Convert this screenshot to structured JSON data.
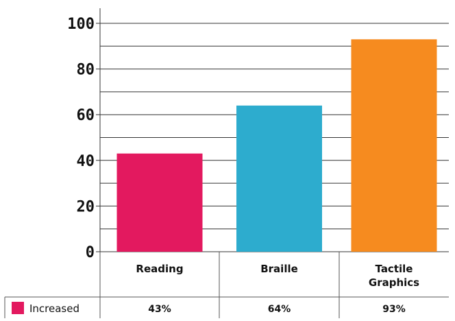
{
  "chart_data": {
    "type": "bar",
    "categories": [
      "Reading",
      "Braille",
      "Tactile Graphics"
    ],
    "series": [
      {
        "name": "Increased",
        "values": [
          43,
          64,
          93
        ],
        "value_labels": [
          "43%",
          "64%",
          "93%"
        ],
        "color": "#E3195F"
      }
    ],
    "bar_colors": [
      "#E3195F",
      "#2DACCE",
      "#F68B1F"
    ],
    "ylim": [
      0,
      100
    ],
    "yticks": [
      "0",
      "20",
      "40",
      "60",
      "80",
      "100"
    ],
    "minor_gridlines": true,
    "legend_placement": "bottom-left table row",
    "data_table": true
  }
}
